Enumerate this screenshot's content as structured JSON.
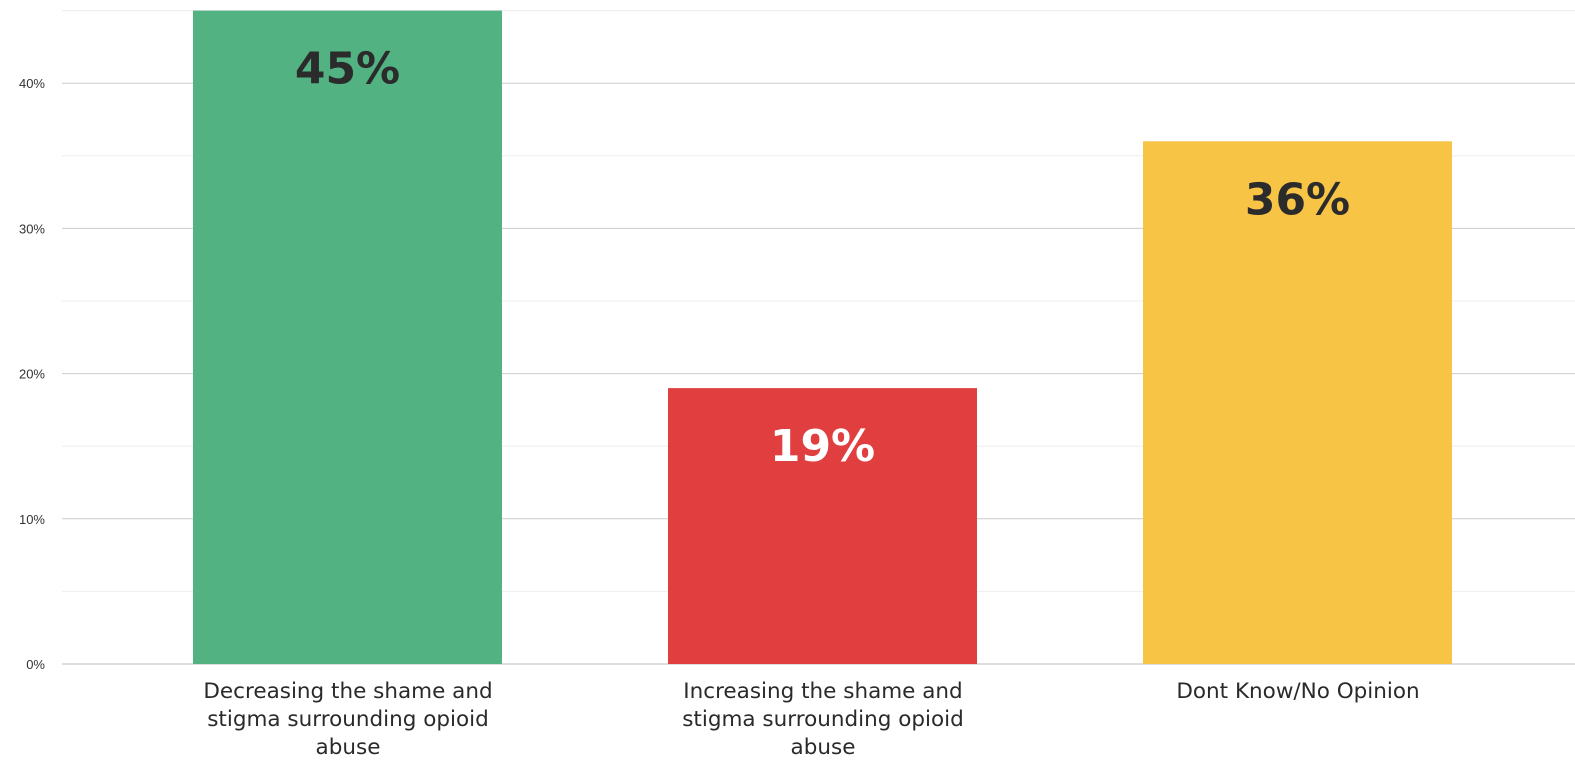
{
  "chart_data": {
    "type": "bar",
    "categories": [
      "Decreasing the shame and stigma surrounding opioid abuse",
      "Increasing the shame and stigma surrounding opioid abuse",
      "Dont Know/No Opinion"
    ],
    "values": [
      45,
      19,
      36
    ],
    "data_labels": [
      "45%",
      "19%",
      "36%"
    ],
    "colors": [
      "#52b282",
      "#e03e3f",
      "#f7c446"
    ],
    "data_label_colors": [
      "#2b2b2b",
      "#ffffff",
      "#2b2b2b"
    ],
    "yticks": [
      0,
      10,
      20,
      30,
      40
    ],
    "ytick_labels": [
      "0%",
      "10%",
      "20%",
      "30%",
      "40%"
    ],
    "ylim": [
      0,
      45
    ],
    "grid": true,
    "minor_grid": true,
    "title": "",
    "xlabel": "",
    "ylabel": "",
    "legend": false
  }
}
